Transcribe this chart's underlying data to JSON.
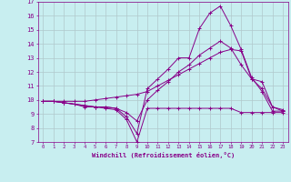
{
  "xlabel": "Windchill (Refroidissement éolien,°C)",
  "ylabel": "",
  "xlim": [
    -0.5,
    23.5
  ],
  "ylim": [
    7,
    17
  ],
  "xticks": [
    0,
    1,
    2,
    3,
    4,
    5,
    6,
    7,
    8,
    9,
    10,
    11,
    12,
    13,
    14,
    15,
    16,
    17,
    18,
    19,
    20,
    21,
    22,
    23
  ],
  "yticks": [
    7,
    8,
    9,
    10,
    11,
    12,
    13,
    14,
    15,
    16,
    17
  ],
  "background_color": "#c8eef0",
  "grid_color": "#b0c8cc",
  "line_color": "#880088",
  "lines": [
    {
      "x": [
        0,
        1,
        2,
        3,
        4,
        5,
        6,
        7,
        8,
        9,
        10,
        11,
        12,
        13,
        14,
        15,
        16,
        17,
        18,
        19,
        20,
        21,
        22,
        23
      ],
      "y": [
        9.9,
        9.9,
        9.8,
        9.7,
        9.5,
        9.5,
        9.4,
        9.3,
        8.6,
        7.0,
        9.4,
        9.4,
        9.4,
        9.4,
        9.4,
        9.4,
        9.4,
        9.4,
        9.4,
        9.1,
        9.1,
        9.1,
        9.1,
        9.1
      ]
    },
    {
      "x": [
        0,
        1,
        2,
        3,
        4,
        5,
        6,
        7,
        8,
        9,
        10,
        11,
        12,
        13,
        14,
        15,
        16,
        17,
        18,
        19,
        20,
        21,
        22,
        23
      ],
      "y": [
        9.9,
        9.9,
        9.8,
        9.7,
        9.6,
        9.5,
        9.5,
        9.4,
        8.8,
        7.6,
        10.8,
        11.5,
        12.2,
        13.0,
        13.0,
        15.1,
        16.2,
        16.7,
        15.3,
        13.6,
        11.6,
        10.6,
        9.2,
        9.2
      ]
    },
    {
      "x": [
        0,
        1,
        2,
        3,
        4,
        5,
        6,
        7,
        8,
        9,
        10,
        11,
        12,
        13,
        14,
        15,
        16,
        17,
        18,
        19,
        20,
        21,
        22,
        23
      ],
      "y": [
        9.9,
        9.9,
        9.8,
        9.7,
        9.6,
        9.5,
        9.5,
        9.4,
        9.1,
        8.5,
        10.0,
        10.7,
        11.3,
        12.0,
        12.5,
        13.2,
        13.7,
        14.2,
        13.7,
        12.5,
        11.5,
        10.8,
        9.5,
        9.3
      ]
    },
    {
      "x": [
        0,
        1,
        2,
        3,
        4,
        5,
        6,
        7,
        8,
        9,
        10,
        11,
        12,
        13,
        14,
        15,
        16,
        17,
        18,
        19,
        20,
        21,
        22,
        23
      ],
      "y": [
        9.9,
        9.9,
        9.9,
        9.9,
        9.9,
        10.0,
        10.1,
        10.2,
        10.3,
        10.4,
        10.6,
        11.0,
        11.4,
        11.8,
        12.2,
        12.6,
        13.0,
        13.4,
        13.6,
        13.5,
        11.5,
        11.3,
        9.5,
        9.2
      ]
    }
  ]
}
